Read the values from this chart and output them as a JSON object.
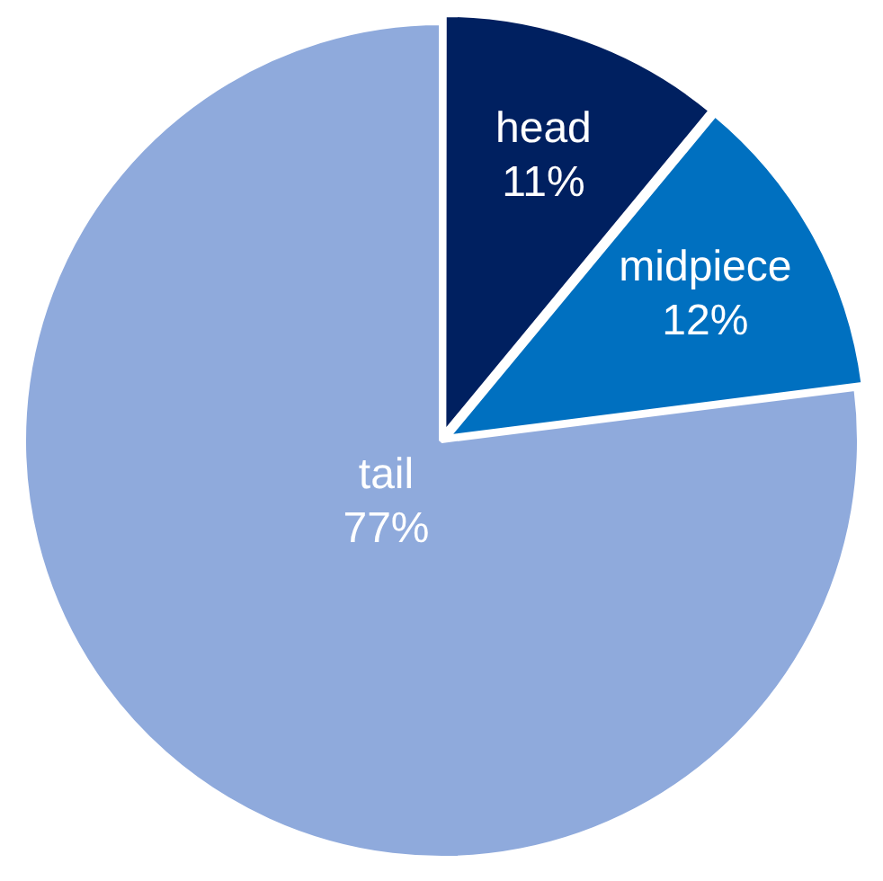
{
  "chart_data": {
    "type": "pie",
    "categories": [
      "head",
      "midpiece",
      "tail"
    ],
    "values": [
      11,
      12,
      77
    ],
    "colors": [
      "#002060",
      "#0070c0",
      "#8faadc"
    ],
    "value_labels": [
      "11%",
      "12%",
      "77%"
    ],
    "legend": false
  }
}
